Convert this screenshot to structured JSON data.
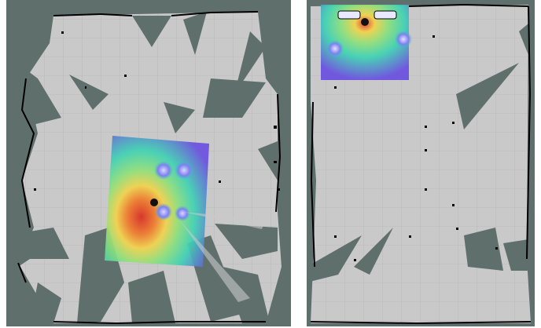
{
  "panels": [
    {
      "id": "left",
      "content": "occupancy-grid-map",
      "overlay": "costmap-heatmap",
      "robot_marker": true
    },
    {
      "id": "right",
      "content": "occupancy-grid-map",
      "overlay": "costmap-heatmap",
      "robot_marker": true
    }
  ],
  "colors": {
    "unknown": "#5f6f6c",
    "free": "#c9c9c9",
    "grid_line": "#b7b7b7",
    "obstacle": "#000000",
    "robot": "#111111",
    "heat_low": "#6a4fe0",
    "heat_mid": "#3fd2b4",
    "heat_high": "#e23b2a"
  }
}
